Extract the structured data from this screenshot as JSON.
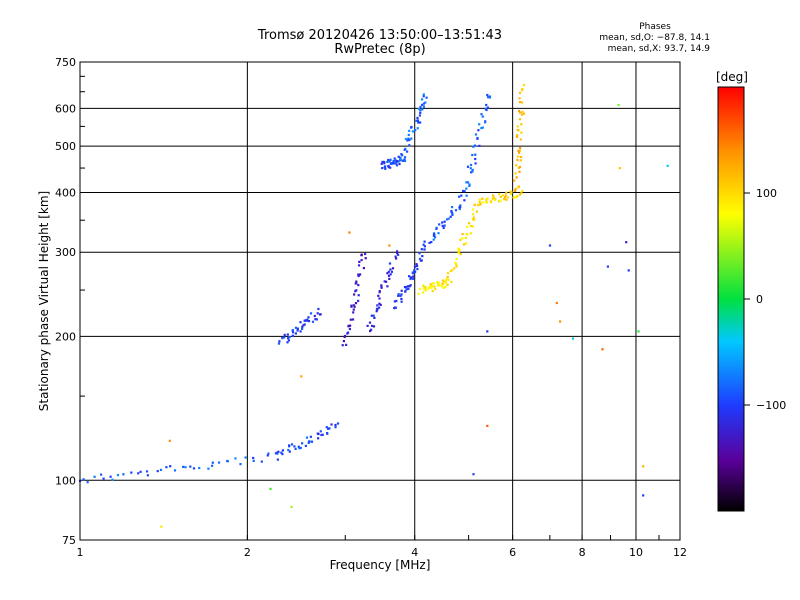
{
  "title": "Tromsø 20120426 13:50:00–13:51:43",
  "subtitle": "RwPretec (8p)",
  "phases_box": {
    "heading": "Phases",
    "line1": "mean, sd,O: −87.8, 14.1",
    "line2": "mean, sd,X:  93.7, 14.9"
  },
  "colorbar": {
    "unit_label": "[deg]",
    "ticks": [
      {
        "value": 100,
        "label": "100"
      },
      {
        "value": 0,
        "label": "0"
      },
      {
        "value": -100,
        "label": "−100"
      }
    ],
    "range": [
      -200,
      200
    ]
  },
  "chart_data": {
    "type": "scatter",
    "title": "Tromsø 20120426 13:50:00–13:51:43",
    "subtitle": "RwPretec (8p)",
    "xlabel": "Frequency [MHz]",
    "ylabel": "Stationary phase Virtual Height [km]",
    "xscale": "log",
    "yscale": "log",
    "xlim": [
      1,
      12
    ],
    "ylim": [
      75,
      750
    ],
    "xticks": [
      1,
      2,
      4,
      6,
      8,
      10,
      12
    ],
    "yticks": [
      75,
      100,
      200,
      300,
      400,
      500,
      600,
      750
    ],
    "grid": true,
    "series": [
      {
        "name": "O",
        "color": "#1e3cff",
        "segments": [
          {
            "x": [
              1.0,
              2.25
            ],
            "y": [
              100,
              112
            ],
            "phase": -85
          },
          {
            "x": [
              2.25,
              2.9
            ],
            "y": [
              112,
              130
            ],
            "phase": -95
          },
          {
            "x": [
              2.3,
              2.7
            ],
            "y": [
              195,
              225
            ],
            "phase": -100
          },
          {
            "x": [
              3.0,
              3.25
            ],
            "y": [
              190,
              300
            ],
            "phase": -130
          },
          {
            "x": [
              3.3,
              3.7
            ],
            "y": [
              205,
              300
            ],
            "phase": -120
          },
          {
            "x": [
              3.7,
              4.1
            ],
            "y": [
              230,
              290
            ],
            "phase": -105
          },
          {
            "x": [
              4.1,
              4.9
            ],
            "y": [
              300,
              390
            ],
            "phase": -90
          },
          {
            "x": [
              4.9,
              5.45
            ],
            "y": [
              390,
              650
            ],
            "phase": -85
          },
          {
            "x": [
              3.5,
              3.8
            ],
            "y": [
              455,
              470
            ],
            "phase": -95
          },
          {
            "x": [
              3.8,
              4.2
            ],
            "y": [
              470,
              640
            ],
            "phase": -80
          }
        ]
      },
      {
        "name": "X",
        "color": "#ffe000",
        "segments": [
          {
            "x": [
              4.1,
              4.6
            ],
            "y": [
              250,
              260
            ],
            "phase": 90
          },
          {
            "x": [
              4.6,
              5.2
            ],
            "y": [
              260,
              380
            ],
            "phase": 95
          },
          {
            "x": [
              5.2,
              6.2
            ],
            "y": [
              380,
              400
            ],
            "phase": 100
          },
          {
            "x": [
              6.1,
              6.25
            ],
            "y": [
              400,
              660
            ],
            "phase": 115
          }
        ]
      }
    ],
    "outliers": [
      {
        "x": 1.4,
        "y": 80,
        "phase": 95
      },
      {
        "x": 1.45,
        "y": 121,
        "phase": 140
      },
      {
        "x": 2.2,
        "y": 96,
        "phase": 20
      },
      {
        "x": 2.4,
        "y": 88,
        "phase": 50
      },
      {
        "x": 2.5,
        "y": 165,
        "phase": 130
      },
      {
        "x": 3.05,
        "y": 330,
        "phase": 150
      },
      {
        "x": 3.6,
        "y": 310,
        "phase": 140
      },
      {
        "x": 5.4,
        "y": 130,
        "phase": 160
      },
      {
        "x": 5.4,
        "y": 205,
        "phase": -110
      },
      {
        "x": 5.1,
        "y": 103,
        "phase": -95
      },
      {
        "x": 7.0,
        "y": 310,
        "phase": -100
      },
      {
        "x": 7.2,
        "y": 235,
        "phase": 150
      },
      {
        "x": 7.3,
        "y": 215,
        "phase": 140
      },
      {
        "x": 7.7,
        "y": 198,
        "phase": -40
      },
      {
        "x": 8.7,
        "y": 188,
        "phase": 160
      },
      {
        "x": 8.9,
        "y": 280,
        "phase": -100
      },
      {
        "x": 9.3,
        "y": 610,
        "phase": 40
      },
      {
        "x": 9.35,
        "y": 450,
        "phase": 110
      },
      {
        "x": 9.6,
        "y": 315,
        "phase": -120
      },
      {
        "x": 9.7,
        "y": 275,
        "phase": -110
      },
      {
        "x": 10.1,
        "y": 205,
        "phase": 10
      },
      {
        "x": 10.3,
        "y": 107,
        "phase": 120
      },
      {
        "x": 10.3,
        "y": 93,
        "phase": -100
      },
      {
        "x": 11.4,
        "y": 455,
        "phase": -40
      }
    ]
  }
}
